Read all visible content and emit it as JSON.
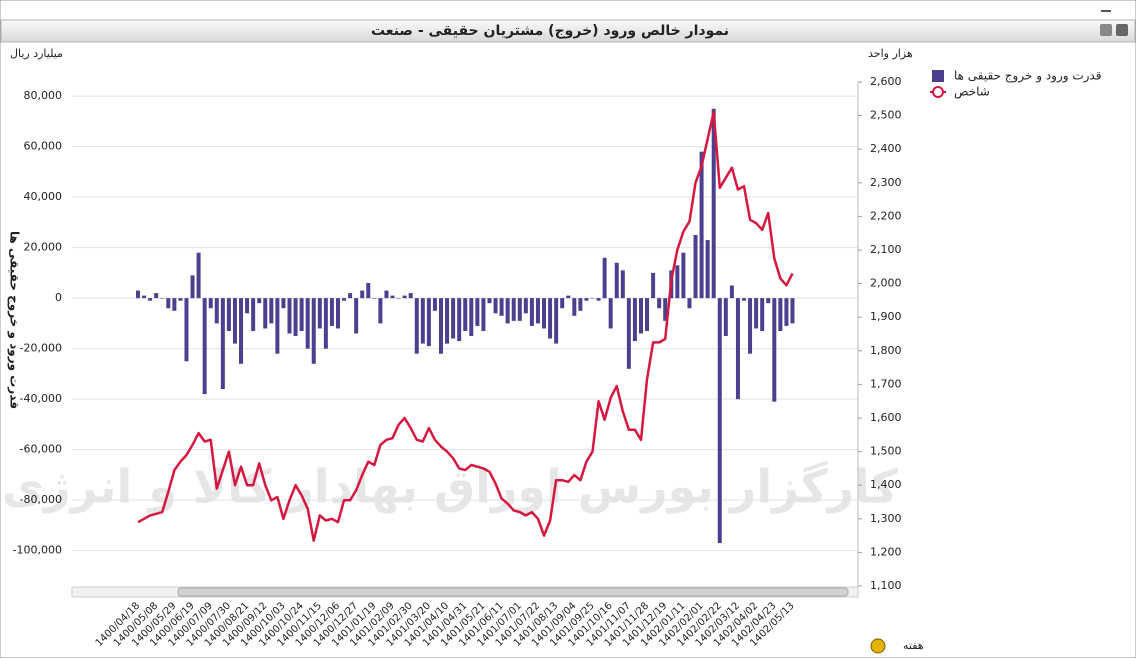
{
  "chart_data": {
    "type": "bar-line",
    "title": "نمودار خالص ورود (خروج) مشتریان حقیقی - صنعت",
    "y_unit": "میلیارد ریال",
    "y2_unit": "هزار واحد",
    "y_axis_label": "قدرت ورود و خروج حقیقی ها",
    "x_axis_label": "هفته",
    "watermark": "کارگزار بورس اوراق بهادار کالا و انرژی",
    "legend": "top-right",
    "categories": [
      "1400/04/18",
      null,
      null,
      "1400/05/08",
      null,
      null,
      "1400/05/29",
      null,
      null,
      "1400/06/19",
      null,
      null,
      "1400/07/09",
      null,
      null,
      "1400/07/30",
      null,
      null,
      "1400/08/21",
      null,
      null,
      "1400/09/12",
      null,
      null,
      "1400/10/03",
      null,
      null,
      "1400/10/24",
      null,
      null,
      "1400/11/15",
      null,
      null,
      "1400/12/06",
      null,
      null,
      "1400/12/27",
      null,
      null,
      "1401/01/19",
      null,
      null,
      "1401/02/09",
      null,
      null,
      "1401/02/30",
      null,
      null,
      "1401/03/20",
      null,
      null,
      "1401/04/10",
      null,
      null,
      "1401/04/31",
      null,
      null,
      "1401/05/21",
      null,
      null,
      "1401/06/11",
      null,
      null,
      "1401/07/01",
      null,
      null,
      "1401/07/22",
      null,
      null,
      "1401/08/13",
      null,
      null,
      "1401/09/04",
      null,
      null,
      "1401/09/25",
      null,
      null,
      "1401/10/16",
      null,
      null,
      "1401/11/07",
      null,
      null,
      "1401/11/28",
      null,
      null,
      "1401/12/19",
      null,
      null,
      "1402/01/11",
      null,
      null,
      "1402/02/01",
      null,
      null,
      "1402/02/22",
      null,
      null,
      "1402/03/12",
      null,
      null,
      "1402/04/02",
      null,
      null,
      "1402/04/23",
      null,
      null,
      "1402/05/13"
    ],
    "series": [
      {
        "name": "قدرت ورود و خروج حقیقی ها",
        "type": "bar",
        "color": "#4b3f8f",
        "values": [
          3000,
          1000,
          -1000,
          2000,
          0,
          -4000,
          -5000,
          -1000,
          -25000,
          9000,
          18000,
          -38000,
          -4000,
          -10000,
          -36000,
          -13000,
          -18000,
          -26000,
          -6000,
          -13000,
          -2000,
          -12000,
          -10000,
          -22000,
          -4000,
          -14000,
          -15000,
          -13000,
          -20000,
          -26000,
          -12000,
          -20000,
          -11000,
          -12000,
          -1000,
          2000,
          -14000,
          3000,
          6000,
          0,
          -10000,
          3000,
          1000,
          0,
          1000,
          2000,
          -22000,
          -18000,
          -19000,
          -5000,
          -22000,
          -18000,
          -16000,
          -17000,
          -13000,
          -15000,
          -11000,
          -13000,
          -2000,
          -6000,
          -7000,
          -10000,
          -9000,
          -9000,
          -6000,
          -11000,
          -10000,
          -12000,
          -16000,
          -18000,
          -4000,
          1000,
          -7000,
          -5000,
          -1000,
          0,
          -1000,
          16000,
          -12000,
          14000,
          11000,
          -28000,
          -17000,
          -14000,
          -13000,
          10000,
          -4000,
          -9000,
          11000,
          13000,
          18000,
          -4000,
          25000,
          58000,
          23000,
          75000,
          -97000,
          -15000,
          5000,
          -40000,
          -1000,
          -22000,
          -12000,
          -13000,
          -2000,
          -41000,
          -13000,
          -11000,
          -10000
        ]
      },
      {
        "name": "شاخص",
        "type": "line",
        "axis": "y2",
        "color": "#d6173f",
        "values": [
          1290,
          1300,
          1310,
          1315,
          1320,
          1380,
          1445,
          1470,
          1490,
          1520,
          1555,
          1530,
          1535,
          1390,
          1445,
          1500,
          1400,
          1455,
          1400,
          1400,
          1465,
          1400,
          1355,
          1365,
          1300,
          1355,
          1400,
          1370,
          1330,
          1235,
          1310,
          1295,
          1300,
          1290,
          1355,
          1355,
          1385,
          1430,
          1470,
          1460,
          1520,
          1535,
          1540,
          1580,
          1600,
          1570,
          1535,
          1530,
          1570,
          1535,
          1515,
          1500,
          1480,
          1450,
          1445,
          1460,
          1455,
          1450,
          1440,
          1405,
          1360,
          1345,
          1325,
          1320,
          1310,
          1320,
          1300,
          1250,
          1295,
          1415,
          1415,
          1410,
          1430,
          1415,
          1470,
          1500,
          1650,
          1595,
          1660,
          1695,
          1620,
          1565,
          1565,
          1535,
          1715,
          1825,
          1825,
          1835,
          2010,
          2100,
          2155,
          2185,
          2300,
          2350,
          2430,
          2510,
          2285,
          2315,
          2345,
          2280,
          2290,
          2190,
          2180,
          2160,
          2210,
          2075,
          2015,
          1995,
          2030
        ]
      }
    ],
    "ylim": [
      -114000,
      85600
    ],
    "yticks": [
      {
        "value": 80000,
        "label": "80,000"
      },
      {
        "value": 60000,
        "label": "60,000"
      },
      {
        "value": 40000,
        "label": "40,000"
      },
      {
        "value": 20000,
        "label": "20,000"
      },
      0,
      {
        "value": -20000,
        "label": "-20,000"
      },
      {
        "value": -40000,
        "label": "-40,000"
      },
      {
        "value": -60000,
        "label": "-60,000"
      },
      {
        "value": -80000,
        "label": "-80,000"
      },
      {
        "value": -100000,
        "label": "-100,000"
      }
    ],
    "y2lim": [
      1100,
      2600
    ],
    "y2ticks": [
      {
        "value": 2600,
        "label": "2,600"
      },
      {
        "value": 2500,
        "label": "2,500"
      },
      {
        "value": 2400,
        "label": "2,400"
      },
      {
        "value": 2300,
        "label": "2,300"
      },
      {
        "value": 2200,
        "label": "2,200"
      },
      {
        "value": 2100,
        "label": "2,100"
      },
      {
        "value": 2000,
        "label": "2,000"
      },
      {
        "value": 1900,
        "label": "1,900"
      },
      {
        "value": 1800,
        "label": "1,800"
      },
      {
        "value": 1700,
        "label": "1,700"
      },
      {
        "value": 1600,
        "label": "1,600"
      },
      {
        "value": 1500,
        "label": "1,500"
      },
      {
        "value": 1400,
        "label": "1,400"
      },
      {
        "value": 1300,
        "label": "1,300"
      },
      {
        "value": 1200,
        "label": "1,200"
      },
      {
        "value": 1100,
        "label": "1,100"
      }
    ],
    "grid": true
  }
}
